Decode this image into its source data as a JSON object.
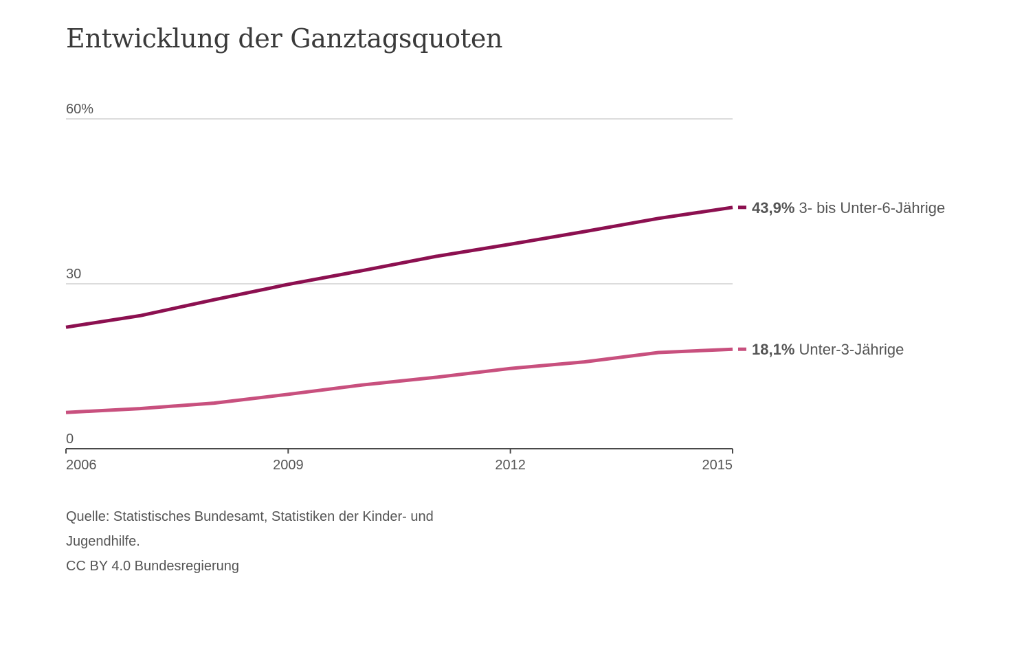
{
  "title": "Entwicklung der Ganztagsquoten",
  "source": {
    "line1": "Quelle: Statistisches Bundesamt, Statistiken der Kinder- und",
    "line2": "Jugendhilfe.",
    "line3": "CC BY 4.0 Bundesregierung"
  },
  "colors": {
    "series_3_6": "#8c1050",
    "series_u3": "#c8507e",
    "grid": "#d0d0d0",
    "axis": "#4a4a4a",
    "text": "#555555"
  },
  "chart_data": {
    "type": "line",
    "title": "Entwicklung der Ganztagsquoten",
    "xlabel": "",
    "ylabel": "",
    "x": [
      2006,
      2007,
      2008,
      2009,
      2010,
      2011,
      2012,
      2013,
      2014,
      2015
    ],
    "xlim": [
      2006,
      2015
    ],
    "ylim": [
      0,
      60
    ],
    "grid": true,
    "y_ticks": [
      {
        "value": 0,
        "label": "0"
      },
      {
        "value": 30,
        "label": "30"
      },
      {
        "value": 60,
        "label": "60%"
      }
    ],
    "x_ticks": [
      {
        "value": 2006,
        "label": "2006"
      },
      {
        "value": 2009,
        "label": "2009"
      },
      {
        "value": 2012,
        "label": "2012"
      },
      {
        "value": 2015,
        "label": "2015"
      }
    ],
    "series": [
      {
        "key": "series_3_6",
        "name": "3- bis Unter-6-Jährige",
        "end_value_label": "43,9%",
        "values": [
          22.1,
          24.2,
          27.1,
          29.9,
          32.4,
          35.0,
          37.2,
          39.5,
          41.9,
          43.9
        ]
      },
      {
        "key": "series_u3",
        "name": "Unter-3-Jährige",
        "end_value_label": "18,1%",
        "values": [
          6.6,
          7.3,
          8.3,
          9.9,
          11.6,
          13.0,
          14.6,
          15.8,
          17.5,
          18.1
        ]
      }
    ]
  }
}
